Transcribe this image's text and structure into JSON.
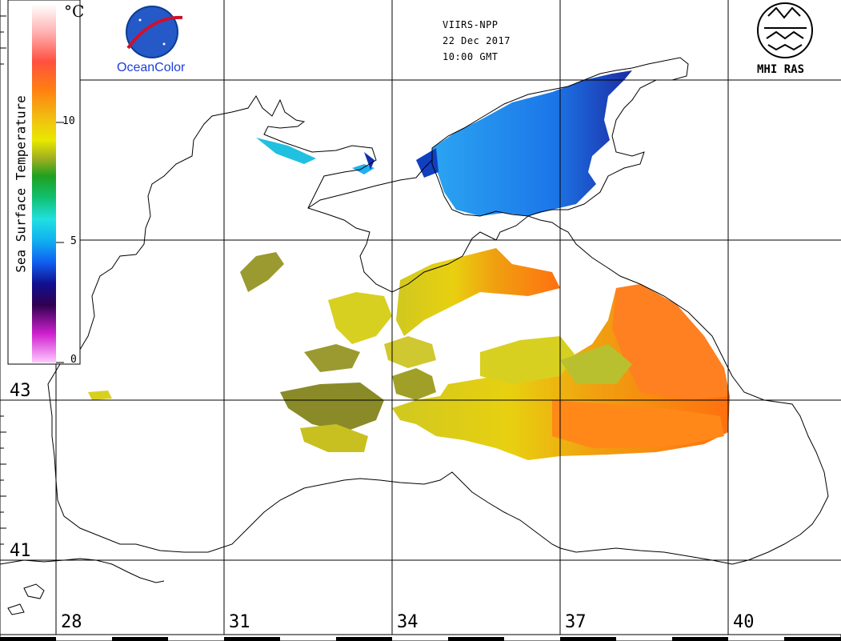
{
  "header": {
    "sensor": "VIIRS-NPP",
    "date": "22 Dec 2017",
    "time": "10:00 GMT"
  },
  "logos": {
    "nasa_label": "OceanColor",
    "mhi_label": "MHI RAS"
  },
  "colorbar": {
    "title": "Sea Surface Temperature",
    "unit": "°C",
    "ticks": [
      "10",
      "5",
      "0"
    ],
    "colors": [
      "#ffffff",
      "#ffb0b0",
      "#ff5040",
      "#ff8010",
      "#f0c010",
      "#e8e800",
      "#a0c020",
      "#20a020",
      "#10c070",
      "#20e0e0",
      "#10b0f0",
      "#1060f0",
      "#101090",
      "#400060",
      "#d020d0",
      "#ffb0ff"
    ]
  },
  "axes": {
    "lat_labels": [
      "43",
      "41"
    ],
    "lon_labels": [
      "28",
      "31",
      "34",
      "37",
      "40"
    ]
  },
  "map": {
    "land_color": "#ffffff",
    "coast_color": "#000000",
    "grid_color": "#000000"
  }
}
